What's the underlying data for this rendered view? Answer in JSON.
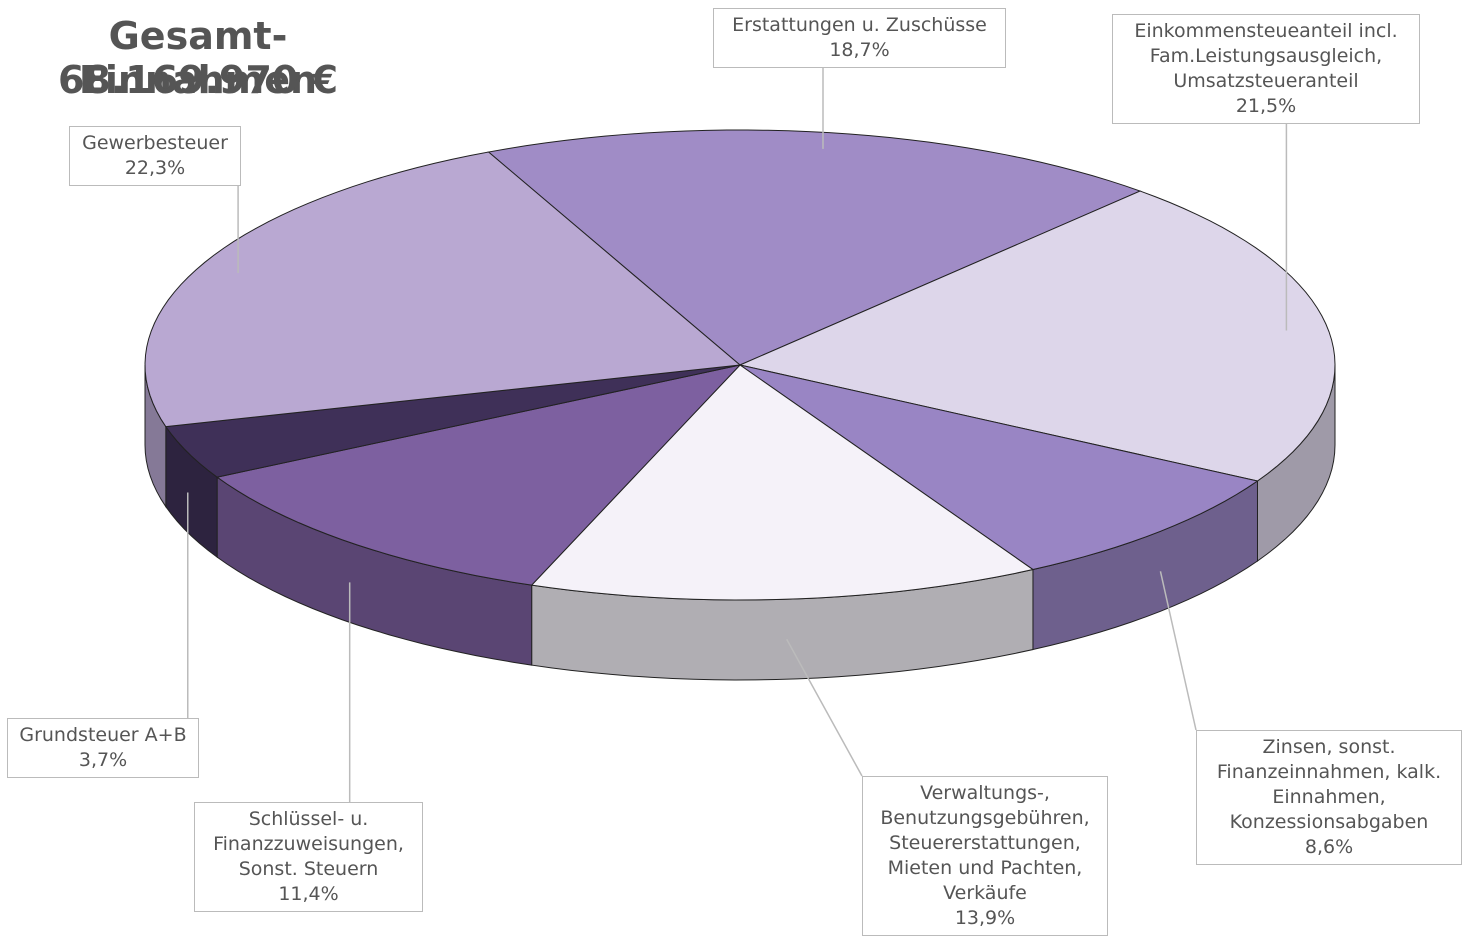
{
  "chart_data": {
    "type": "pie3d",
    "title": "Gesamt-Einnahmen",
    "subtitle": "68.169.970 €",
    "categories": [
      "Erstattungen u. Zuschüsse",
      "Einkommensteueanteil incl. Fam.Leistungsausgleich, Umsatzsteueranteil",
      "Zinsen, sonst. Finanzeinnahmen, kalk. Einnahmen, Konzessionsabgaben",
      "Verwaltungs-, Benutzungsgebühren, Steuererstattungen, Mieten und Pachten, Verkäufe",
      "Schlüssel- u. Finanzzuweisungen, Sonst. Steuern",
      "Grundsteuer A+B",
      "Gewerbesteuer"
    ],
    "values": [
      18.7,
      21.5,
      8.6,
      13.9,
      11.4,
      3.7,
      22.3
    ],
    "value_labels": [
      "18,7%",
      "21,5%",
      "8,6%",
      "13,9%",
      "11,4%",
      "3,7%",
      "22,3%"
    ],
    "colors": [
      "#a08cc6",
      "#ddd6ea",
      "#9985c4",
      "#f5f2f9",
      "#7d60a0",
      "#3f3058",
      "#b9a8d2"
    ]
  }
}
